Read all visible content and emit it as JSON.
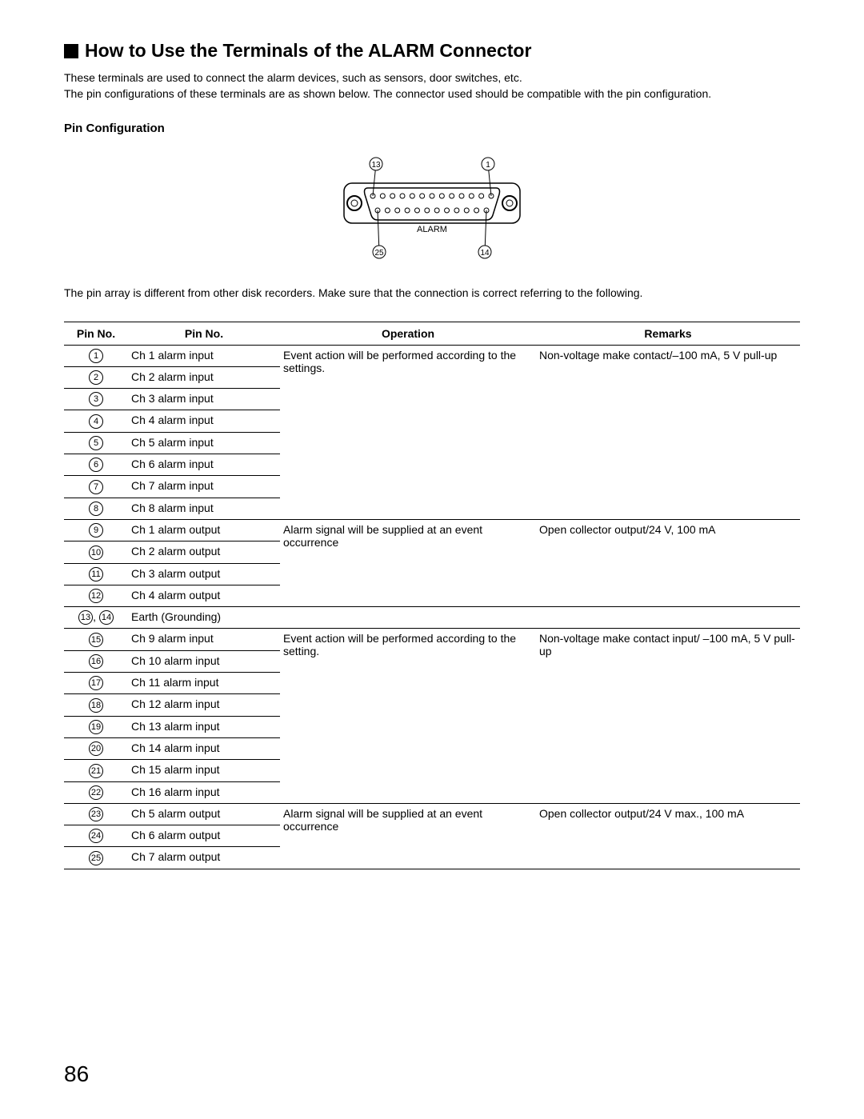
{
  "title": "How to Use the Terminals of the ALARM Connector",
  "intro_l1": "These terminals are used to connect the alarm devices, such as sensors, door switches, etc.",
  "intro_l2": "The pin configurations of these terminals are as shown below. The connector used should be compatible with the pin configuration.",
  "sub_heading": "Pin Configuration",
  "note": "The pin array is different from other disk recorders. Make sure that the connection is correct referring to the following.",
  "page_number": "86",
  "connector": {
    "label": "ALARM",
    "corner_labels": {
      "top_left": "13",
      "top_right": "1",
      "bottom_left": "25",
      "bottom_right": "14"
    },
    "top_pins": 13,
    "bottom_pins": 12,
    "colors": {
      "outline": "#000000",
      "fill": "#ffffff",
      "pin_fill": "#ffffff",
      "pin_stroke": "#000000"
    }
  },
  "table": {
    "headers": [
      "Pin No.",
      "Pin No.",
      "Operation",
      "Remarks"
    ],
    "groups": [
      {
        "operation": "Event action will be performed according to the settings.",
        "remarks": "Non-voltage make contact/–100 mA, 5 V pull-up",
        "rows": [
          {
            "pin": "1",
            "name": "Ch 1 alarm input"
          },
          {
            "pin": "2",
            "name": "Ch 2 alarm input"
          },
          {
            "pin": "3",
            "name": "Ch 3 alarm input"
          },
          {
            "pin": "4",
            "name": "Ch 4 alarm input"
          },
          {
            "pin": "5",
            "name": "Ch 5 alarm input"
          },
          {
            "pin": "6",
            "name": "Ch 6 alarm input"
          },
          {
            "pin": "7",
            "name": "Ch 7 alarm input"
          },
          {
            "pin": "8",
            "name": "Ch 8 alarm input"
          }
        ]
      },
      {
        "operation": "Alarm signal will be supplied at an event occurrence",
        "remarks": "Open collector output/24 V, 100 mA",
        "rows": [
          {
            "pin": "9",
            "name": "Ch 1 alarm output"
          },
          {
            "pin": "10",
            "name": "Ch 2 alarm output"
          },
          {
            "pin": "11",
            "name": "Ch 3 alarm output"
          },
          {
            "pin": "12",
            "name": "Ch 4 alarm output"
          }
        ]
      },
      {
        "operation": "",
        "remarks": "",
        "rows": [
          {
            "pin": "13, 14",
            "name": "Earth (Grounding)",
            "is_pair": true
          }
        ]
      },
      {
        "operation": "Event action will be performed according to the setting.",
        "remarks": "Non-voltage make contact input/ –100 mA, 5 V pull-up",
        "rows": [
          {
            "pin": "15",
            "name": "Ch 9 alarm input"
          },
          {
            "pin": "16",
            "name": "Ch 10 alarm input"
          },
          {
            "pin": "17",
            "name": "Ch 11 alarm input"
          },
          {
            "pin": "18",
            "name": "Ch 12 alarm input"
          },
          {
            "pin": "19",
            "name": "Ch 13 alarm input"
          },
          {
            "pin": "20",
            "name": "Ch 14 alarm input"
          },
          {
            "pin": "21",
            "name": "Ch 15 alarm input"
          },
          {
            "pin": "22",
            "name": "Ch 16 alarm input"
          }
        ]
      },
      {
        "operation": "Alarm signal will be supplied at an event occurrence",
        "remarks": "Open collector output/24 V max., 100 mA",
        "rows": [
          {
            "pin": "23",
            "name": "Ch 5 alarm output"
          },
          {
            "pin": "24",
            "name": "Ch 6 alarm output"
          },
          {
            "pin": "25",
            "name": "Ch 7 alarm output"
          }
        ]
      }
    ]
  }
}
